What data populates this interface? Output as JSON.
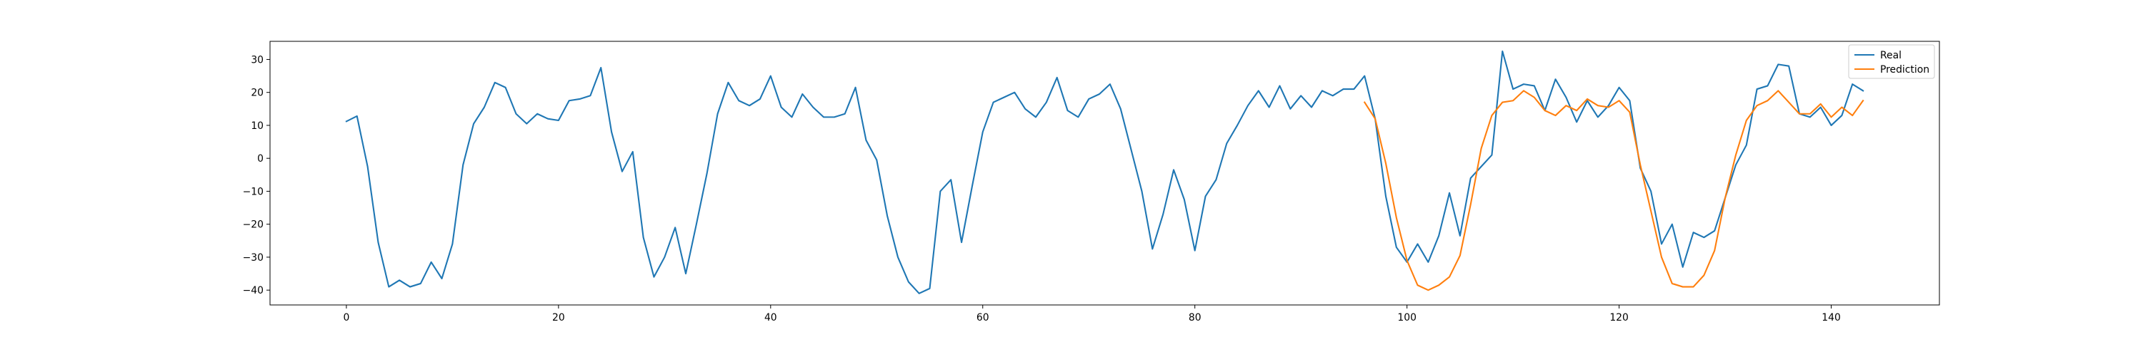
{
  "chart_data": {
    "type": "line",
    "title": "",
    "xlabel": "",
    "ylabel": "",
    "xlim": [
      -7.2,
      150.2
    ],
    "ylim": [
      -44.5,
      35.5
    ],
    "xticks": [
      0,
      20,
      40,
      60,
      80,
      100,
      120,
      140
    ],
    "yticks": [
      -40,
      -30,
      -20,
      -10,
      0,
      10,
      20,
      30
    ],
    "grid": false,
    "legend": "top-right",
    "series": [
      {
        "name": "Real",
        "color": "#1f77b4",
        "x_start": 0,
        "values": [
          11.2,
          12.8,
          -2.5,
          -25.5,
          -39.0,
          -37.0,
          -39.0,
          -38.0,
          -31.5,
          -36.5,
          -26.0,
          -2.0,
          10.5,
          15.5,
          23.0,
          21.5,
          13.5,
          10.5,
          13.5,
          12.0,
          11.5,
          17.5,
          18.0,
          19.0,
          27.5,
          8.0,
          -4.0,
          2.0,
          -24.0,
          -36.0,
          -30.0,
          -21.0,
          -35.0,
          -20.0,
          -4.5,
          13.5,
          23.0,
          17.5,
          16.0,
          18.0,
          25.0,
          15.5,
          12.5,
          19.5,
          15.5,
          12.5,
          12.5,
          13.5,
          21.5,
          5.5,
          -0.5,
          -17.5,
          -30.0,
          -37.5,
          -41.0,
          -39.5,
          -10.0,
          -6.5,
          -25.5,
          -8.5,
          8.0,
          17.0,
          18.5,
          20.0,
          15.0,
          12.5,
          17.0,
          24.5,
          14.5,
          12.5,
          18.0,
          19.5,
          22.5,
          15.0,
          2.5,
          -10.0,
          -27.5,
          -17.0,
          -3.5,
          -12.5,
          -28.0,
          -11.5,
          -6.5,
          4.5,
          10.0,
          16.0,
          20.5,
          15.5,
          22.0,
          15.0,
          19.0,
          15.5,
          20.5,
          19.0,
          21.0,
          21.0,
          25.0,
          12.0,
          -11.5,
          -27.0,
          -31.5,
          -26.0,
          -31.5,
          -23.5,
          -10.5,
          -23.5,
          -6.0,
          -2.5,
          1.0,
          32.5,
          21.0,
          22.5,
          22.0,
          14.5,
          24.0,
          18.5,
          11.0,
          17.5,
          12.5,
          16.0,
          21.5,
          17.5,
          -3.0,
          -10.0,
          -26.0,
          -20.0,
          -33.0,
          -22.5,
          -24.0,
          -22.0,
          -12.0,
          -2.0,
          4.0,
          21.0,
          22.0,
          28.5,
          28.0,
          13.5,
          12.5,
          15.5,
          10.0,
          13.0,
          22.5,
          20.5
        ]
      },
      {
        "name": "Prediction",
        "color": "#ff7f0e",
        "x_start": 96,
        "values": [
          17.0,
          12.0,
          -1.5,
          -18.0,
          -31.0,
          -38.5,
          -40.0,
          -38.5,
          -36.0,
          -29.5,
          -14.0,
          3.0,
          13.0,
          17.0,
          17.5,
          20.5,
          18.5,
          14.5,
          13.0,
          16.0,
          14.5,
          18.0,
          16.0,
          15.5,
          17.5,
          14.0,
          -2.0,
          -16.0,
          -30.0,
          -38.0,
          -39.0,
          -39.0,
          -35.5,
          -28.0,
          -12.0,
          1.0,
          11.5,
          16.0,
          17.5,
          20.5,
          17.0,
          13.5,
          13.5,
          16.5,
          12.5,
          15.5,
          13.0,
          17.5
        ]
      }
    ]
  }
}
